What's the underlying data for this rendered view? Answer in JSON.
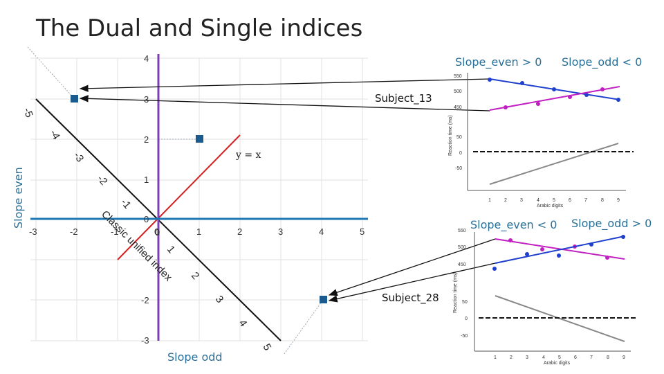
{
  "title": "The Dual and Single indices",
  "axes": {
    "y_label": "Slope even",
    "x_label": "Slope odd",
    "x_ticks": [
      "-3",
      "-2",
      "-1",
      "0",
      "1",
      "2",
      "3",
      "4",
      "5"
    ],
    "y_ticks": [
      "4",
      "3",
      "2",
      "1",
      "0",
      "-2",
      "-3"
    ],
    "origin_extra": "0"
  },
  "diagonal": {
    "label": "Classic unified index",
    "ticks": [
      "-5",
      "-4",
      "-3",
      "-2",
      "-1",
      "1",
      "2",
      "3",
      "4",
      "5"
    ]
  },
  "identity_line_label": "y = x",
  "subjects": [
    {
      "name": "Subject_13",
      "slope_odd": -2,
      "slope_even": 3
    },
    {
      "name": "Subject_28",
      "slope_odd": 4,
      "slope_even": -2
    },
    {
      "name": "unlabeled",
      "slope_odd": 1,
      "slope_even": 2
    }
  ],
  "panels": [
    {
      "condition_even": "Slope_even > 0",
      "condition_odd": "Slope_odd < 0",
      "y_axis_label": "Reaction time (ms)",
      "x_axis_label": "Arabic digits",
      "top_ticks": [
        "550",
        "500",
        "450"
      ],
      "bottom_ticks": [
        "50",
        "0",
        "-50"
      ],
      "x_ticks": [
        "1",
        "2",
        "3",
        "4",
        "5",
        "6",
        "7",
        "8",
        "9"
      ]
    },
    {
      "condition_even": "Slope_even < 0",
      "condition_odd": "Slope_odd > 0",
      "y_axis_label": "Reaction time (ms)",
      "x_axis_label": "Arabic digits",
      "top_ticks": [
        "550",
        "500",
        "450"
      ],
      "bottom_ticks": [
        "50",
        "0",
        "-50"
      ],
      "x_ticks": [
        "1",
        "2",
        "3",
        "4",
        "5",
        "6",
        "7",
        "8",
        "9"
      ]
    }
  ],
  "colors": {
    "purple_axis": "#7e3fb5",
    "blue_axis": "#1f77b4",
    "identity_red": "#d42020",
    "diagonal_black": "#111111",
    "marker_blue": "#1a5a8f",
    "blue_series": "#1f3fcf",
    "magenta_series": "#c21fc2"
  }
}
